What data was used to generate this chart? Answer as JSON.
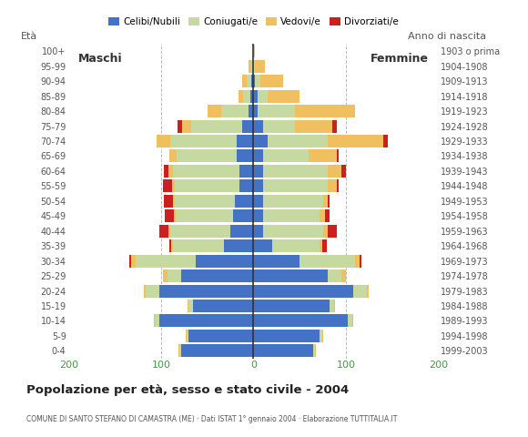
{
  "age_groups": [
    "0-4",
    "5-9",
    "10-14",
    "15-19",
    "20-24",
    "25-29",
    "30-34",
    "35-39",
    "40-44",
    "45-49",
    "50-54",
    "55-59",
    "60-64",
    "65-69",
    "70-74",
    "75-79",
    "80-84",
    "85-89",
    "90-94",
    "95-99",
    "100+"
  ],
  "birth_years": [
    "1999-2003",
    "1994-1998",
    "1989-1993",
    "1984-1988",
    "1979-1983",
    "1974-1978",
    "1969-1973",
    "1964-1968",
    "1959-1963",
    "1954-1958",
    "1949-1953",
    "1944-1948",
    "1939-1943",
    "1934-1938",
    "1929-1933",
    "1924-1928",
    "1919-1923",
    "1914-1918",
    "1909-1913",
    "1904-1908",
    "1903 o prima"
  ],
  "colors": {
    "celibi": "#4472c4",
    "coniugati": "#c5d9a0",
    "vedovi": "#f0c060",
    "divorziati": "#cc2020"
  },
  "males_celibi": [
    78,
    70,
    102,
    65,
    102,
    78,
    62,
    32,
    25,
    22,
    20,
    15,
    15,
    18,
    18,
    12,
    5,
    3,
    2,
    0,
    0
  ],
  "males_coniugati": [
    2,
    2,
    5,
    5,
    15,
    15,
    65,
    55,
    65,
    62,
    65,
    70,
    72,
    65,
    72,
    55,
    30,
    8,
    5,
    2,
    0
  ],
  "males_vedovi": [
    1,
    1,
    1,
    1,
    2,
    5,
    5,
    2,
    2,
    2,
    2,
    3,
    5,
    8,
    15,
    10,
    15,
    5,
    5,
    3,
    0
  ],
  "males_divorziati": [
    0,
    0,
    0,
    0,
    0,
    0,
    2,
    2,
    10,
    10,
    10,
    10,
    5,
    0,
    0,
    5,
    0,
    0,
    0,
    0,
    0
  ],
  "females_celibi": [
    65,
    72,
    102,
    82,
    108,
    80,
    50,
    20,
    10,
    10,
    10,
    10,
    10,
    10,
    15,
    10,
    5,
    5,
    2,
    0,
    0
  ],
  "females_coniugati": [
    2,
    2,
    5,
    5,
    15,
    15,
    60,
    52,
    65,
    62,
    65,
    70,
    70,
    50,
    65,
    35,
    40,
    10,
    5,
    2,
    0
  ],
  "females_vedovi": [
    1,
    1,
    1,
    1,
    2,
    5,
    5,
    2,
    5,
    5,
    5,
    10,
    15,
    30,
    60,
    40,
    65,
    35,
    25,
    10,
    2
  ],
  "females_divorziati": [
    0,
    0,
    0,
    0,
    0,
    0,
    2,
    5,
    10,
    5,
    2,
    2,
    5,
    2,
    5,
    5,
    0,
    0,
    0,
    0,
    0
  ],
  "title": "Popolazione per età, sesso e stato civile - 2004",
  "subtitle": "COMUNE DI SANTO STEFANO DI CAMASTRA (ME) · Dati ISTAT 1° gennaio 2004 · Elaborazione TUTTITALIA.IT",
  "xlim": 200,
  "background": "#ffffff",
  "grid_color": "#bbbbbb",
  "legend_labels": [
    "Celibi/Nubili",
    "Coniugati/e",
    "Vedovi/e",
    "Divorziati/e"
  ]
}
